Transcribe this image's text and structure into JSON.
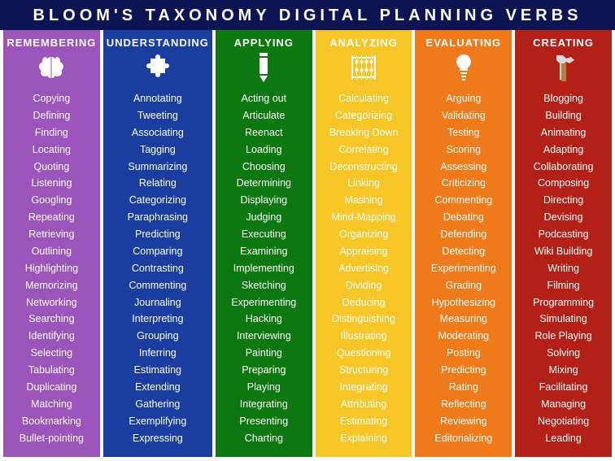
{
  "title": "BLOOM'S TAXONOMY DIGITAL PLANNING VERBS",
  "title_bg": "#0d1453",
  "title_color": "#ffffff",
  "columns": [
    {
      "header": "REMEMBERING",
      "bg": "#9a54ba",
      "icon": "brain",
      "verbs": [
        "Copying",
        "Defining",
        "Finding",
        "Locating",
        "Quoting",
        "Listening",
        "Googling",
        "Repeating",
        "Retrieving",
        "Outlining",
        "Highlighting",
        "Memorizing",
        "Networking",
        "Searching",
        "Identifying",
        "Selecting",
        "Tabulating",
        "Duplicating",
        "Matching",
        "Bookmarking",
        "Bullet-pointing"
      ]
    },
    {
      "header": "UNDERSTANDING",
      "bg": "#1a3ea0",
      "icon": "puzzle",
      "verbs": [
        "Annotating",
        "Tweeting",
        "Associating",
        "Tagging",
        "Summarizing",
        "Relating",
        "Categorizing",
        "Paraphrasing",
        "Predicting",
        "Comparing",
        "Contrasting",
        "Commenting",
        "Journaling",
        "Interpreting",
        "Grouping",
        "Inferring",
        "Estimating",
        "Extending",
        "Gathering",
        "Exemplifying",
        "Expressing"
      ]
    },
    {
      "header": "APPLYING",
      "bg": "#0d780f",
      "icon": "pencil",
      "verbs": [
        "Acting out",
        "Articulate",
        "Reenact",
        "Loading",
        "Choosing",
        "Determining",
        "Displaying",
        "Judging",
        "Executing",
        "Examining",
        "Implementing",
        "Sketching",
        "Experimenting",
        "Hacking",
        "Interviewing",
        "Painting",
        "Preparing",
        "Playing",
        "Integrating",
        "Presenting",
        "Charting"
      ]
    },
    {
      "header": "ANALYZING",
      "bg": "#f5c626",
      "icon": "abacus",
      "verbs": [
        "Calculating",
        "Categorizing",
        "Breaking Down",
        "Correlating",
        "Deconstructing",
        "Linking",
        "Mashing",
        "Mind-Mapping",
        "Organizing",
        "Appraising",
        "Advertising",
        "Dividing",
        "Deducing",
        "Distinguishing",
        "Illustrating",
        "Questioning",
        "Structuring",
        "Integrating",
        "Attributing",
        "Estimating",
        "Explaining"
      ]
    },
    {
      "header": "EVALUATING",
      "bg": "#ef7a1a",
      "icon": "bulb",
      "verbs": [
        "Arguing",
        "Validating",
        "Testing",
        "Scoring",
        "Assessing",
        "Criticizing",
        "Commenting",
        "Debating",
        "Defending",
        "Detecting",
        "Experimenting",
        "Grading",
        "Hypothesizing",
        "Measuring",
        "Moderating",
        "Posting",
        "Predicting",
        "Rating",
        "Reflecting",
        "Reviewing",
        "Editorializing"
      ]
    },
    {
      "header": "CREATING",
      "bg": "#b32017",
      "icon": "hammer",
      "verbs": [
        "Blogging",
        "Building",
        "Animating",
        "Adapting",
        "Collaborating",
        "Composing",
        "Directing",
        "Devising",
        "Podcasting",
        "Wiki Building",
        "Writing",
        "Filming",
        "Programming",
        "Simulating",
        "Role Playing",
        "Solving",
        "Mixing",
        "Facilitating",
        "Managing",
        "Negotiating",
        "Leading"
      ]
    }
  ]
}
